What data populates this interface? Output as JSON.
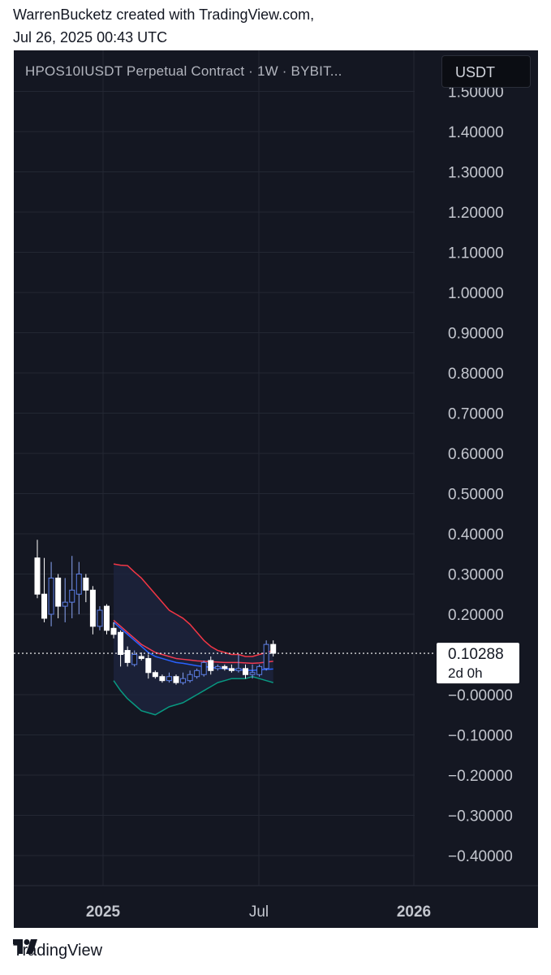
{
  "header": {
    "line1": "WarrenBucketz created with TradingView.com,",
    "line2": "Jul 26, 2025 00:43 UTC"
  },
  "chart_title": "HPOS10IUSDT Perpetual Contract · 1W · BYBIT...",
  "currency_button": "USDT",
  "footer": {
    "brand": "TradingView",
    "logo_icon": "tradingview-logo-icon"
  },
  "colors": {
    "background": "#141722",
    "grid": "#232733",
    "axis_text": "#b2b5be",
    "candle_up_border": "#5b7ee8",
    "candle_down": "#ffffff",
    "upper_band": "#f23645",
    "basis": "#2962ff",
    "lower_band": "#089981",
    "ema": "#ef3b52",
    "band_fill": "#1e2640"
  },
  "chart_data": {
    "type": "candlestick",
    "title": "HPOS10IUSDT Perpetual Contract · 1W · BYBIT...",
    "y_axis": {
      "ticks": [
        "1.50000",
        "1.40000",
        "1.30000",
        "1.20000",
        "1.10000",
        "1.00000",
        "0.90000",
        "0.80000",
        "0.70000",
        "0.60000",
        "0.50000",
        "0.40000",
        "0.30000",
        "0.20000",
        "−0.00000",
        "−0.10000",
        "−0.20000",
        "−0.30000",
        "−0.40000"
      ],
      "tick_values": [
        1.5,
        1.4,
        1.3,
        1.2,
        1.1,
        1.0,
        0.9,
        0.8,
        0.7,
        0.6,
        0.5,
        0.4,
        0.3,
        0.2,
        0.0,
        -0.1,
        -0.2,
        -0.3,
        -0.4
      ],
      "range": [
        -0.5,
        1.52
      ]
    },
    "x_axis": {
      "ticks": [
        "2025",
        "Jul",
        "2026"
      ]
    },
    "current_price": {
      "value": "0.10288",
      "countdown": "2d 0h",
      "price": 0.10288
    },
    "candles": [
      {
        "o": 0.34,
        "h": 0.385,
        "l": 0.24,
        "c": 0.25
      },
      {
        "o": 0.25,
        "h": 0.34,
        "l": 0.18,
        "c": 0.19
      },
      {
        "o": 0.2,
        "h": 0.33,
        "l": 0.17,
        "c": 0.29
      },
      {
        "o": 0.29,
        "h": 0.3,
        "l": 0.19,
        "c": 0.22
      },
      {
        "o": 0.22,
        "h": 0.29,
        "l": 0.18,
        "c": 0.23
      },
      {
        "o": 0.23,
        "h": 0.345,
        "l": 0.19,
        "c": 0.26
      },
      {
        "o": 0.25,
        "h": 0.33,
        "l": 0.2,
        "c": 0.3
      },
      {
        "o": 0.29,
        "h": 0.3,
        "l": 0.23,
        "c": 0.26
      },
      {
        "o": 0.26,
        "h": 0.27,
        "l": 0.15,
        "c": 0.17
      },
      {
        "o": 0.17,
        "h": 0.22,
        "l": 0.16,
        "c": 0.21
      },
      {
        "o": 0.22,
        "h": 0.225,
        "l": 0.15,
        "c": 0.16
      },
      {
        "o": 0.165,
        "h": 0.18,
        "l": 0.14,
        "c": 0.15
      },
      {
        "o": 0.155,
        "h": 0.16,
        "l": 0.07,
        "c": 0.1
      },
      {
        "o": 0.11,
        "h": 0.12,
        "l": 0.07,
        "c": 0.08
      },
      {
        "o": 0.075,
        "h": 0.11,
        "l": 0.07,
        "c": 0.1
      },
      {
        "o": 0.095,
        "h": 0.105,
        "l": 0.085,
        "c": 0.09
      },
      {
        "o": 0.09,
        "h": 0.1,
        "l": 0.04,
        "c": 0.055
      },
      {
        "o": 0.055,
        "h": 0.06,
        "l": 0.04,
        "c": 0.045
      },
      {
        "o": 0.045,
        "h": 0.05,
        "l": 0.03,
        "c": 0.035
      },
      {
        "o": 0.035,
        "h": 0.055,
        "l": 0.03,
        "c": 0.045
      },
      {
        "o": 0.045,
        "h": 0.05,
        "l": 0.025,
        "c": 0.03
      },
      {
        "o": 0.03,
        "h": 0.055,
        "l": 0.025,
        "c": 0.04
      },
      {
        "o": 0.035,
        "h": 0.06,
        "l": 0.03,
        "c": 0.05
      },
      {
        "o": 0.045,
        "h": 0.065,
        "l": 0.04,
        "c": 0.06
      },
      {
        "o": 0.05,
        "h": 0.085,
        "l": 0.045,
        "c": 0.08
      },
      {
        "o": 0.085,
        "h": 0.095,
        "l": 0.05,
        "c": 0.06
      },
      {
        "o": 0.065,
        "h": 0.075,
        "l": 0.06,
        "c": 0.07
      },
      {
        "o": 0.07,
        "h": 0.075,
        "l": 0.06,
        "c": 0.065
      },
      {
        "o": 0.065,
        "h": 0.075,
        "l": 0.055,
        "c": 0.06
      },
      {
        "o": 0.06,
        "h": 0.1,
        "l": 0.055,
        "c": 0.065
      },
      {
        "o": 0.065,
        "h": 0.075,
        "l": 0.04,
        "c": 0.05
      },
      {
        "o": 0.05,
        "h": 0.075,
        "l": 0.04,
        "c": 0.055
      },
      {
        "o": 0.05,
        "h": 0.075,
        "l": 0.045,
        "c": 0.07
      },
      {
        "o": 0.065,
        "h": 0.135,
        "l": 0.06,
        "c": 0.125
      },
      {
        "o": 0.125,
        "h": 0.135,
        "l": 0.095,
        "c": 0.103
      }
    ],
    "indicator_start_index": 11,
    "upper_band": [
      0.325,
      0.322,
      0.321,
      0.305,
      0.29,
      0.27,
      0.25,
      0.23,
      0.21,
      0.2,
      0.19,
      0.175,
      0.155,
      0.135,
      0.12,
      0.11,
      0.105,
      0.1,
      0.1,
      0.095,
      0.095,
      0.1,
      0.105,
      0.11
    ],
    "basis": [
      0.18,
      0.165,
      0.15,
      0.135,
      0.12,
      0.105,
      0.095,
      0.09,
      0.085,
      0.08,
      0.078,
      0.075,
      0.072,
      0.07,
      0.068,
      0.066,
      0.065,
      0.063,
      0.062,
      0.061,
      0.06,
      0.062,
      0.063,
      0.064
    ],
    "lower_band": [
      0.035,
      0.01,
      -0.01,
      -0.025,
      -0.04,
      -0.045,
      -0.05,
      -0.04,
      -0.03,
      -0.025,
      -0.02,
      -0.01,
      0.0,
      0.01,
      0.02,
      0.03,
      0.035,
      0.04,
      0.04,
      0.04,
      0.045,
      0.04,
      0.035,
      0.03
    ],
    "ema": [
      0.185,
      0.17,
      0.155,
      0.14,
      0.125,
      0.115,
      0.105,
      0.1,
      0.095,
      0.09,
      0.088,
      0.086,
      0.084,
      0.083,
      0.082,
      0.081,
      0.08,
      0.08,
      0.08,
      0.079,
      0.078,
      0.079,
      0.081,
      0.083
    ]
  }
}
